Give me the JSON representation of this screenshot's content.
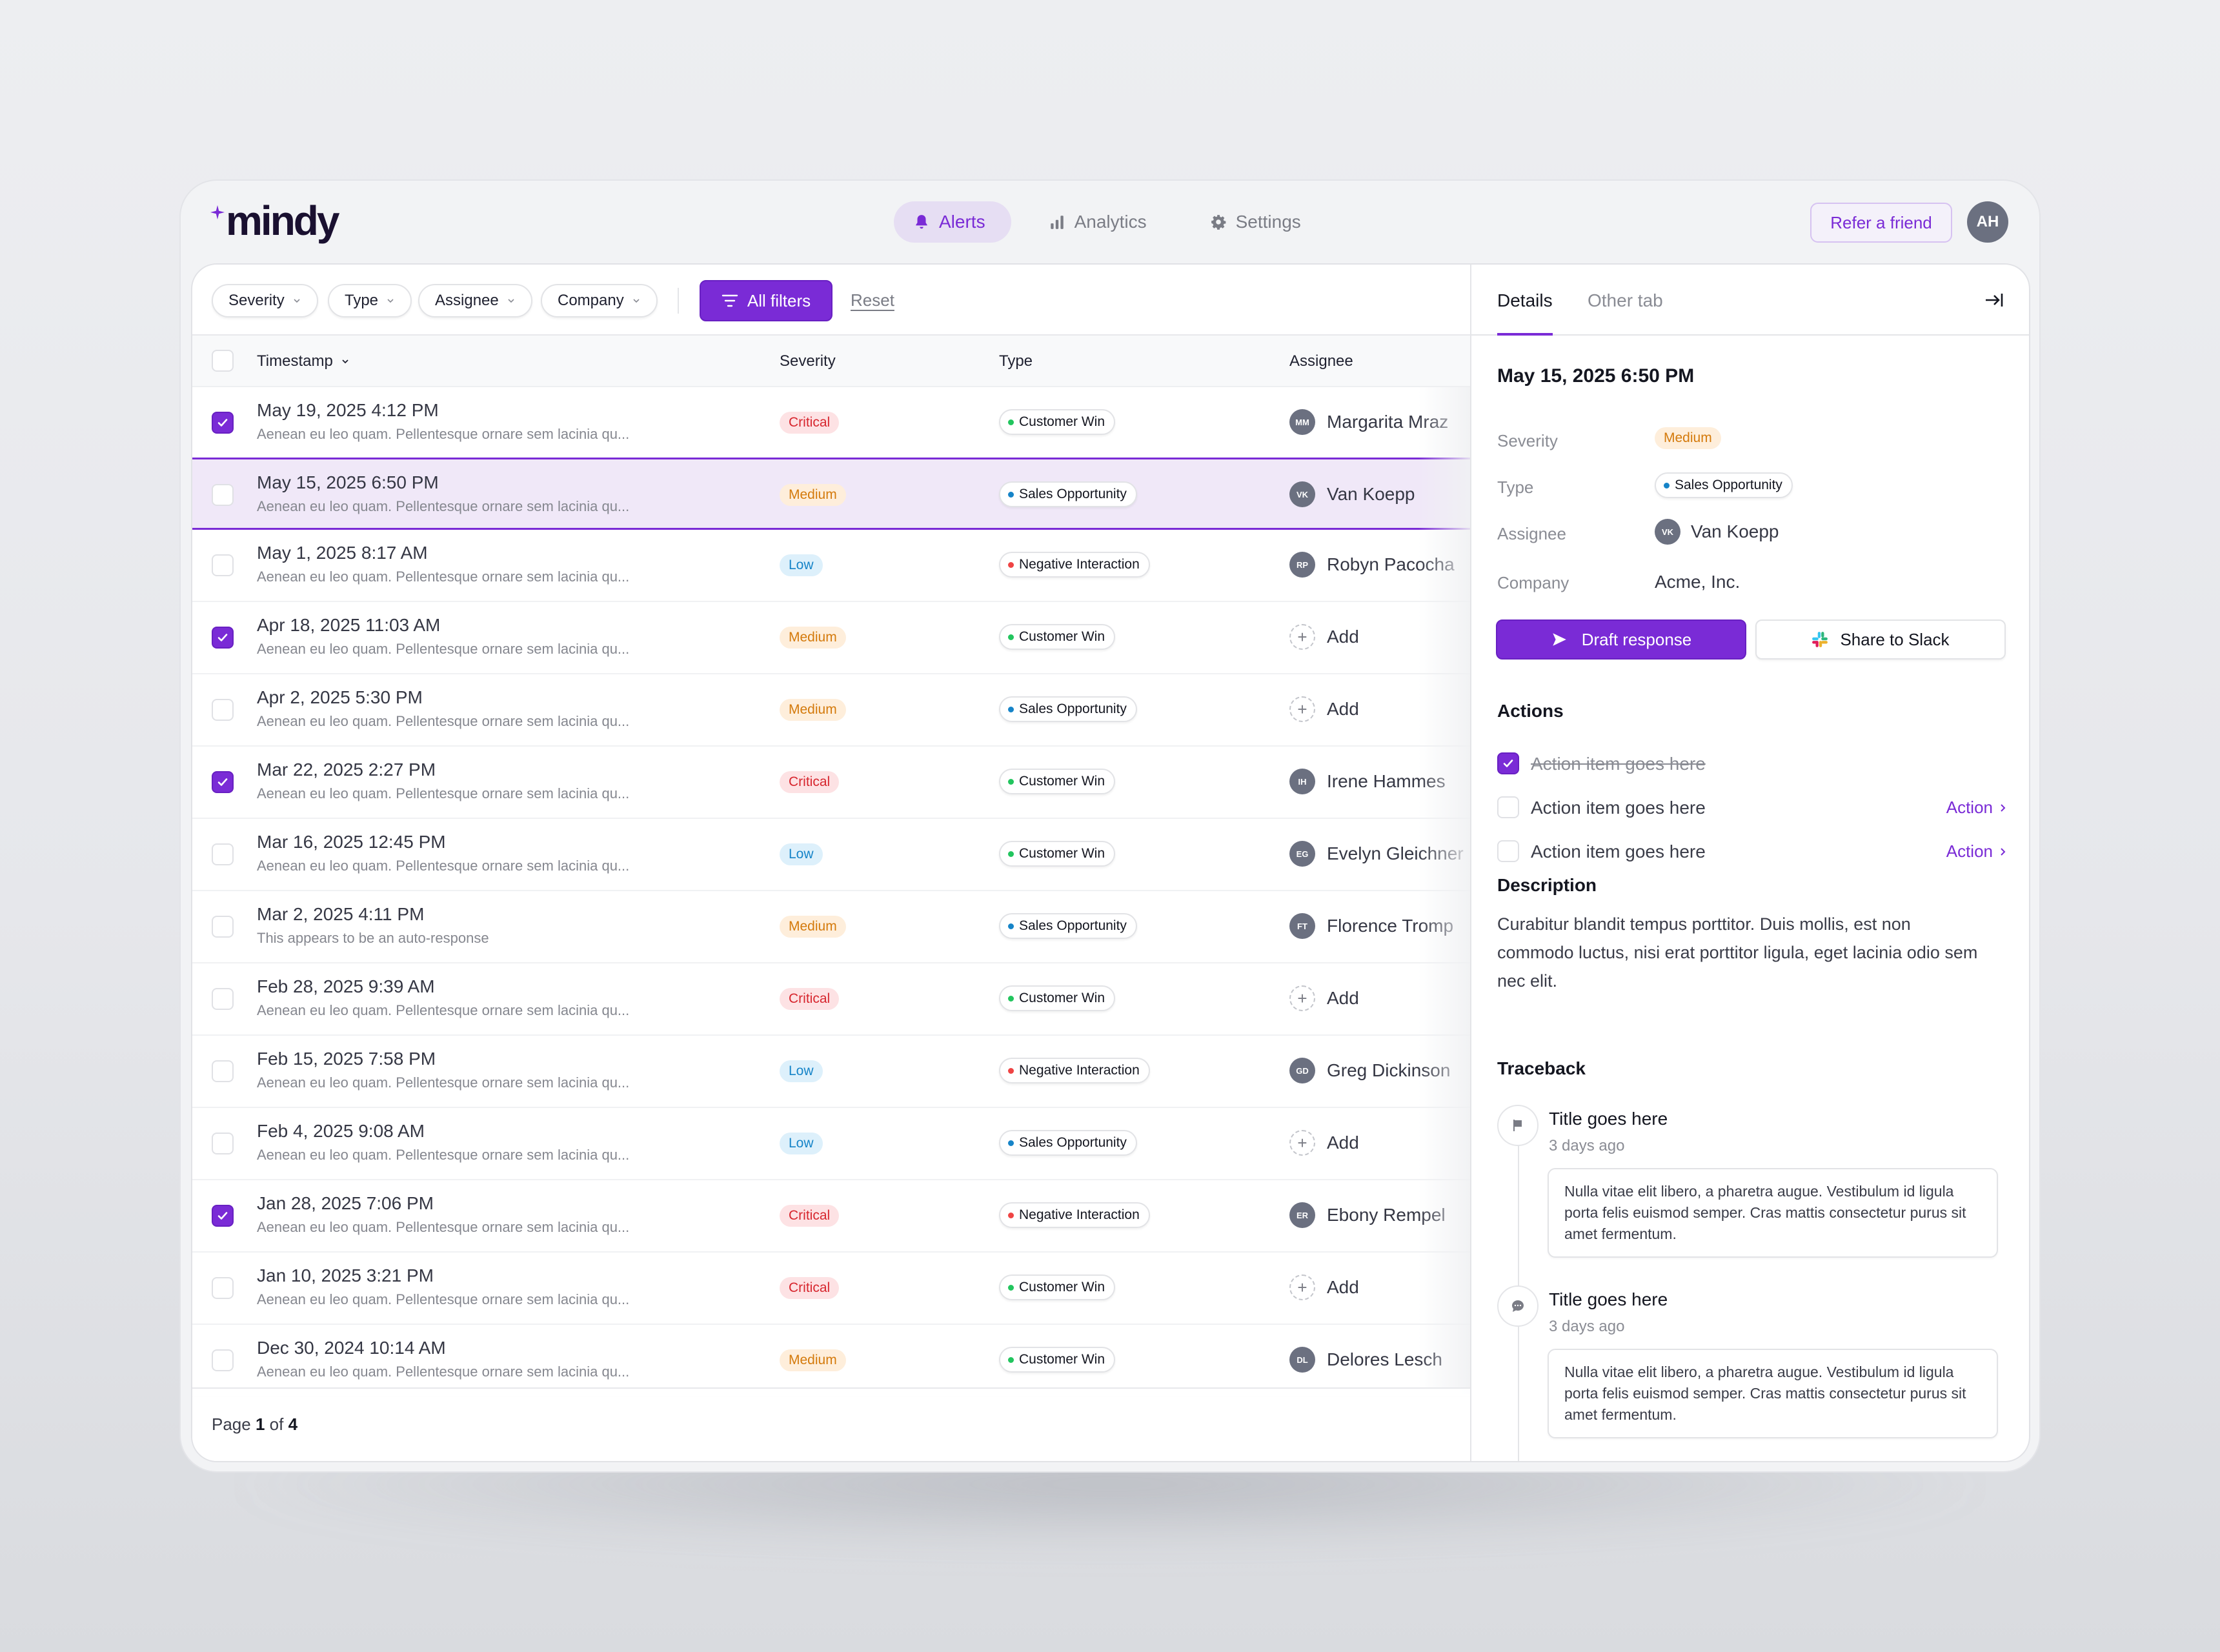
{
  "app": {
    "logo": "mindy",
    "nav": [
      {
        "label": "Alerts",
        "icon": "bell-icon",
        "active": true
      },
      {
        "label": "Analytics",
        "icon": "bar-chart-icon",
        "active": false
      },
      {
        "label": "Settings",
        "icon": "gear-icon",
        "active": false
      }
    ],
    "refer_label": "Refer a friend",
    "user_initials": "AH"
  },
  "colors": {
    "accent": "#7a2bd6",
    "critical": "#d7262e",
    "medium": "#d47a0c",
    "low": "#1684c8",
    "customer_win": "#22c55e",
    "sales_opportunity": "#1684c8",
    "negative_interaction": "#ef4444"
  },
  "filters": {
    "chips": [
      "Severity",
      "Type",
      "Assignee",
      "Company"
    ],
    "all_filters_label": "All filters",
    "reset_label": "Reset"
  },
  "table": {
    "columns": {
      "timestamp": "Timestamp",
      "severity": "Severity",
      "type": "Type",
      "assignee": "Assignee"
    },
    "rows": [
      {
        "checked": true,
        "selected": false,
        "timestamp": "May 19, 2025 4:12 PM",
        "snippet": "Aenean eu leo quam. Pellentesque ornare sem lacinia qu...",
        "severity": "Critical",
        "type": "Customer Win",
        "assignee": "Margarita Mraz",
        "initials": "MM"
      },
      {
        "checked": false,
        "selected": true,
        "timestamp": "May 15, 2025 6:50 PM",
        "snippet": "Aenean eu leo quam. Pellentesque ornare sem lacinia qu...",
        "severity": "Medium",
        "type": "Sales Opportunity",
        "assignee": "Van Koepp",
        "initials": "VK"
      },
      {
        "checked": false,
        "selected": false,
        "timestamp": "May 1, 2025 8:17 AM",
        "snippet": "Aenean eu leo quam. Pellentesque ornare sem lacinia qu...",
        "severity": "Low",
        "type": "Negative Interaction",
        "assignee": "Robyn Pacocha",
        "initials": "RP"
      },
      {
        "checked": true,
        "selected": false,
        "timestamp": "Apr 18, 2025 11:03 AM",
        "snippet": "Aenean eu leo quam. Pellentesque ornare sem lacinia qu...",
        "severity": "Medium",
        "type": "Customer Win",
        "assignee": "Add",
        "initials": ""
      },
      {
        "checked": false,
        "selected": false,
        "timestamp": "Apr 2, 2025 5:30 PM",
        "snippet": "Aenean eu leo quam. Pellentesque ornare sem lacinia qu...",
        "severity": "Medium",
        "type": "Sales Opportunity",
        "assignee": "Add",
        "initials": ""
      },
      {
        "checked": true,
        "selected": false,
        "timestamp": "Mar 22, 2025 2:27 PM",
        "snippet": "Aenean eu leo quam. Pellentesque ornare sem lacinia qu...",
        "severity": "Critical",
        "type": "Customer Win",
        "assignee": "Irene Hammes",
        "initials": "IH"
      },
      {
        "checked": false,
        "selected": false,
        "timestamp": "Mar 16, 2025 12:45 PM",
        "snippet": "Aenean eu leo quam. Pellentesque ornare sem lacinia qu...",
        "severity": "Low",
        "type": "Customer Win",
        "assignee": "Evelyn Gleichner",
        "initials": "EG"
      },
      {
        "checked": false,
        "selected": false,
        "timestamp": "Mar 2, 2025 4:11 PM",
        "snippet": "This appears to be an auto-response",
        "severity": "Medium",
        "type": "Sales Opportunity",
        "assignee": "Florence Tromp",
        "initials": "FT"
      },
      {
        "checked": false,
        "selected": false,
        "timestamp": "Feb 28, 2025 9:39 AM",
        "snippet": "Aenean eu leo quam. Pellentesque ornare sem lacinia qu...",
        "severity": "Critical",
        "type": "Customer Win",
        "assignee": "Add",
        "initials": ""
      },
      {
        "checked": false,
        "selected": false,
        "timestamp": "Feb 15, 2025 7:58 PM",
        "snippet": "Aenean eu leo quam. Pellentesque ornare sem lacinia qu...",
        "severity": "Low",
        "type": "Negative Interaction",
        "assignee": "Greg Dickinson",
        "initials": "GD"
      },
      {
        "checked": false,
        "selected": false,
        "timestamp": "Feb 4, 2025 9:08 AM",
        "snippet": "Aenean eu leo quam. Pellentesque ornare sem lacinia qu...",
        "severity": "Low",
        "type": "Sales Opportunity",
        "assignee": "Add",
        "initials": ""
      },
      {
        "checked": true,
        "selected": false,
        "timestamp": "Jan 28, 2025 7:06 PM",
        "snippet": "Aenean eu leo quam. Pellentesque ornare sem lacinia qu...",
        "severity": "Critical",
        "type": "Negative Interaction",
        "assignee": "Ebony Rempel",
        "initials": "ER"
      },
      {
        "checked": false,
        "selected": false,
        "timestamp": "Jan 10, 2025 3:21 PM",
        "snippet": "Aenean eu leo quam. Pellentesque ornare sem lacinia qu...",
        "severity": "Critical",
        "type": "Customer Win",
        "assignee": "Add",
        "initials": ""
      },
      {
        "checked": false,
        "selected": false,
        "timestamp": "Dec 30, 2024 10:14 AM",
        "snippet": "Aenean eu leo quam. Pellentesque ornare sem lacinia qu...",
        "severity": "Medium",
        "type": "Customer Win",
        "assignee": "Delores Lesch",
        "initials": "DL"
      }
    ],
    "pagination": {
      "prefix": "Page",
      "current": "1",
      "of": "of",
      "total": "4"
    }
  },
  "details": {
    "tabs": [
      "Details",
      "Other tab"
    ],
    "title": "May 15, 2025 6:50 PM",
    "props": {
      "severity_label": "Severity",
      "severity": "Medium",
      "type_label": "Type",
      "type": "Sales Opportunity",
      "assignee_label": "Assignee",
      "assignee": "Van Koepp",
      "assignee_initials": "VK",
      "company_label": "Company",
      "company": "Acme, Inc."
    },
    "draft_label": "Draft response",
    "slack_label": "Share to Slack",
    "actions_heading": "Actions",
    "actions": [
      {
        "label": "Action item goes here",
        "done": true,
        "link": ""
      },
      {
        "label": "Action item goes here",
        "done": false,
        "link": "Action"
      },
      {
        "label": "Action item goes here",
        "done": false,
        "link": "Action"
      }
    ],
    "description_heading": "Description",
    "description": "Curabitur blandit tempus porttitor. Duis mollis, est non commodo luctus, nisi erat porttitor ligula, eget lacinia odio sem nec elit.",
    "traceback_heading": "Traceback",
    "traceback": [
      {
        "icon": "flag-icon",
        "title": "Title goes here",
        "time": "3 days ago",
        "body": "Nulla vitae elit libero, a pharetra augue. Vestibulum id ligula porta felis euismod semper. Cras mattis consectetur purus sit amet fermentum."
      },
      {
        "icon": "chat-bubble-icon",
        "title": "Title goes here",
        "time": "3 days ago",
        "body": "Nulla vitae elit libero, a pharetra augue. Vestibulum id ligula porta felis euismod semper. Cras mattis consectetur purus sit amet fermentum."
      }
    ]
  }
}
